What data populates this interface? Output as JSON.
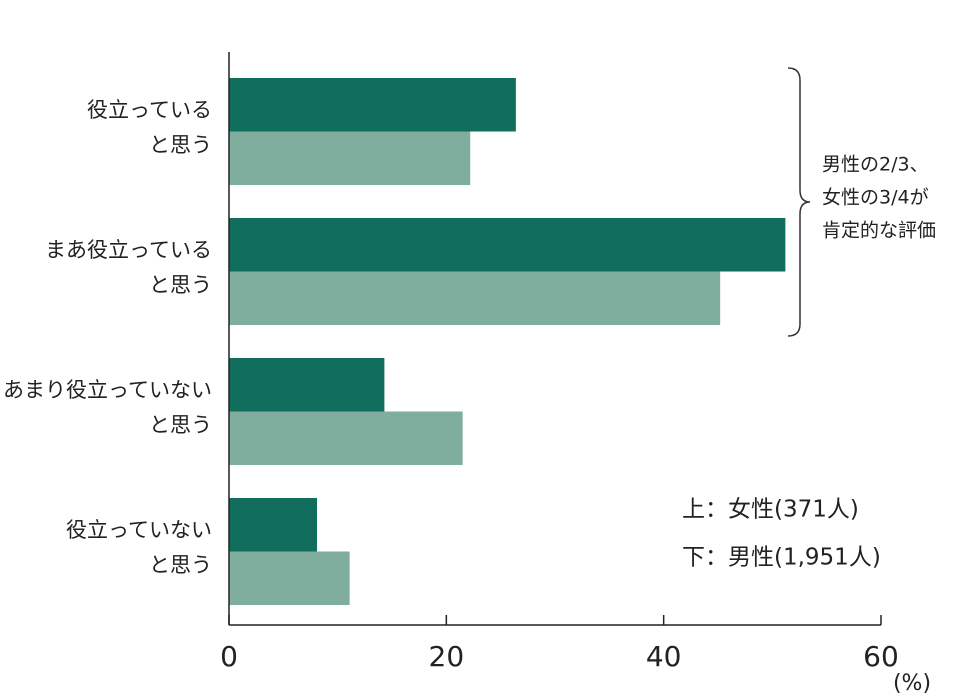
{
  "chart_data": {
    "type": "bar",
    "orientation": "horizontal",
    "categories": [
      [
        "役立っている",
        "と思う"
      ],
      [
        "まあ役立っている",
        "と思う"
      ],
      [
        "あまり役立っていない",
        "と思う"
      ],
      [
        "役立っていない",
        "と思う"
      ]
    ],
    "series": [
      {
        "name": "上：女性(371人)",
        "color": "#126e5c",
        "values": [
          26.4,
          51.2,
          14.3,
          8.1
        ]
      },
      {
        "name": "下：男性(1,951人)",
        "color": "#7fae9f",
        "values": [
          22.2,
          45.2,
          21.5,
          11.1
        ]
      }
    ],
    "xlim": [
      0,
      60
    ],
    "xticks": [
      0,
      20,
      40,
      60
    ],
    "xlabel": "(%)",
    "annotation": [
      "男性の2/3、",
      "女性の3/4が",
      "肯定的な評価"
    ]
  }
}
